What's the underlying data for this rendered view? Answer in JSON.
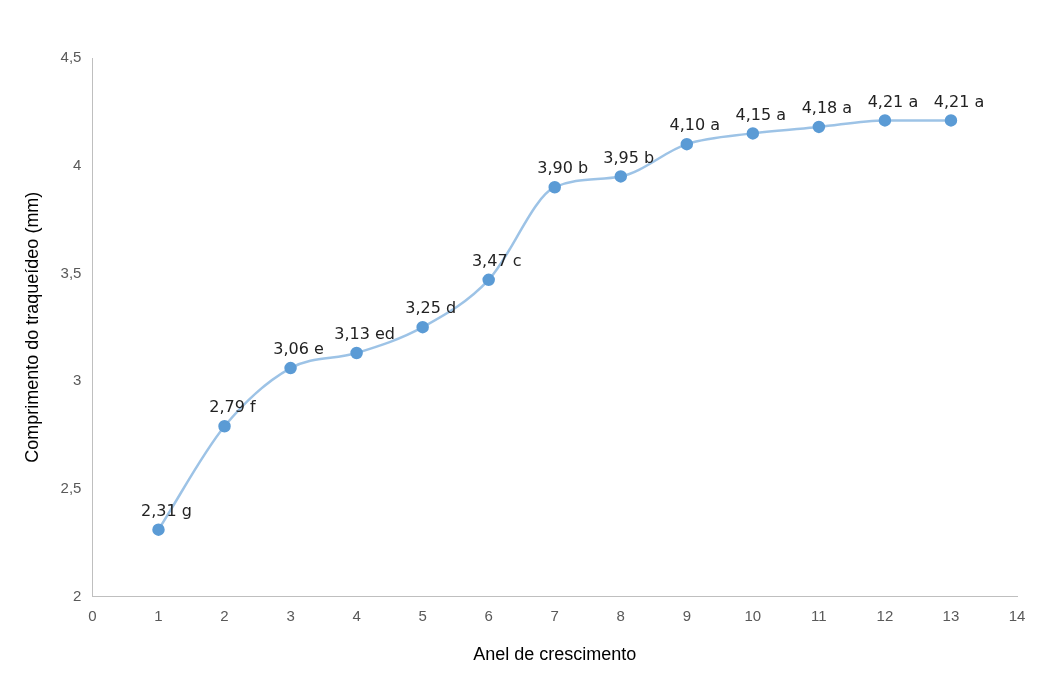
{
  "chart_data": {
    "type": "line",
    "xlabel": "Anel de crescimento",
    "ylabel": "Comprimento do traqueídeo (mm)",
    "x": [
      1,
      2,
      3,
      4,
      5,
      6,
      7,
      8,
      9,
      10,
      11,
      12,
      13
    ],
    "series": [
      {
        "color": "#5b9bd5",
        "values": [
          2.31,
          2.79,
          3.06,
          3.13,
          3.25,
          3.47,
          3.9,
          3.95,
          4.1,
          4.15,
          4.18,
          4.21,
          4.21
        ],
        "value_labels": [
          "2,31 g",
          "2,79 f",
          "3,06 e",
          "3,13 ed",
          "3,25 d",
          "3,47 c",
          "3,90 b",
          "3,95 b",
          "4,10 a",
          "4,15 a",
          "4,18 a",
          "4,21 a",
          "4,21 a"
        ]
      }
    ],
    "xlim": [
      0,
      14
    ],
    "xticks": [
      0,
      1,
      2,
      3,
      4,
      5,
      6,
      7,
      8,
      9,
      10,
      11,
      12,
      13,
      14
    ],
    "ylim": [
      2,
      4.5
    ],
    "yticks": [
      2,
      {
        "value": 2.5,
        "label": "2,5"
      },
      3,
      {
        "value": 3.5,
        "label": "3,5"
      },
      4,
      {
        "value": 4.5,
        "label": "4,5"
      }
    ],
    "grid": false,
    "legend": false,
    "marker": "circle",
    "line_style": "solid"
  }
}
